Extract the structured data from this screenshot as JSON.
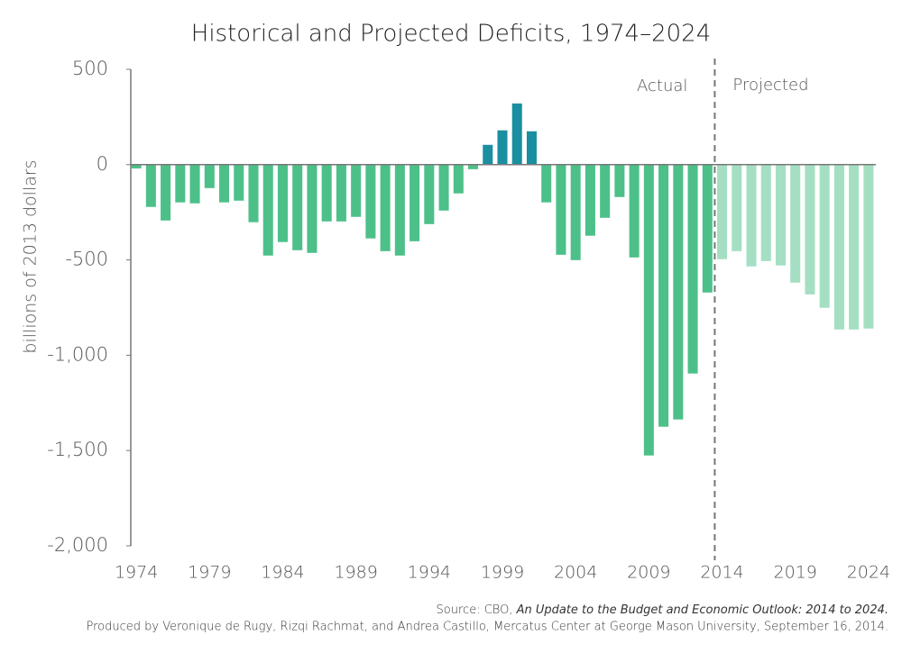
{
  "chart_data": {
    "type": "bar",
    "title": "Historical and Projected Deficits, 1974–2024",
    "y_label": "billions of 2013 dollars",
    "x": [
      1974,
      1975,
      1976,
      1977,
      1978,
      1979,
      1980,
      1981,
      1982,
      1983,
      1984,
      1985,
      1986,
      1987,
      1988,
      1989,
      1990,
      1991,
      1992,
      1993,
      1994,
      1995,
      1996,
      1997,
      1998,
      1999,
      2000,
      2001,
      2002,
      2003,
      2004,
      2005,
      2006,
      2007,
      2008,
      2009,
      2010,
      2011,
      2012,
      2013,
      2014,
      2015,
      2016,
      2017,
      2018,
      2019,
      2020,
      2021,
      2022,
      2023,
      2024
    ],
    "series": [
      {
        "name": "Actual",
        "color": "#4dc08a",
        "surplus_color": "#1a8fa0",
        "values": [
          -20,
          -222,
          -293,
          -198,
          -203,
          -123,
          -198,
          -189,
          -302,
          -477,
          -406,
          -449,
          -463,
          -298,
          -298,
          -274,
          -387,
          -454,
          -477,
          -402,
          -312,
          -241,
          -151,
          -24,
          104,
          180,
          321,
          175,
          -198,
          -473,
          -501,
          -373,
          -279,
          -170,
          -487,
          -1526,
          -1375,
          -1337,
          -1096,
          -671,
          null,
          null,
          null,
          null,
          null,
          null,
          null,
          null,
          null,
          null,
          null
        ]
      },
      {
        "name": "Projected",
        "color": "#a5dfc3",
        "values": [
          null,
          null,
          null,
          null,
          null,
          null,
          null,
          null,
          null,
          null,
          null,
          null,
          null,
          null,
          null,
          null,
          null,
          null,
          null,
          null,
          null,
          null,
          null,
          null,
          null,
          null,
          null,
          null,
          null,
          null,
          null,
          null,
          null,
          null,
          null,
          null,
          null,
          null,
          null,
          null,
          -496,
          -454,
          -534,
          -506,
          -529,
          -619,
          -681,
          -751,
          -865,
          -865,
          -860
        ]
      }
    ],
    "xlim": [
      1973.5,
      2024.5
    ],
    "xticks": [
      1974,
      1979,
      1984,
      1989,
      1994,
      1999,
      2004,
      2009,
      2014,
      2019,
      2024
    ],
    "ylim": [
      -2000,
      500
    ],
    "yticks": [
      500,
      0,
      -500,
      {
        "value": -1000,
        "label": "-1,000"
      },
      {
        "value": -1500,
        "label": "-1,500"
      },
      {
        "value": -2000,
        "label": "-2,000"
      }
    ],
    "grid": false,
    "source": {
      "prefix": "Source: CBO,",
      "title": "An Update to the Budget and Economic Outlook: 2014 to 2024."
    },
    "credit": "Produced by Veronique de Rugy, Rizqi Rachmat, and Andrea Castillo, Mercatus Center at George Mason University, September 16, 2014."
  }
}
